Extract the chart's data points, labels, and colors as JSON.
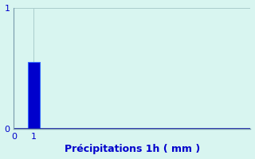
{
  "categories": [
    1
  ],
  "values": [
    0.55
  ],
  "bar_color": "#0000cc",
  "bar_edge_color": "#3366ff",
  "background_color": "#d8f5f0",
  "plot_background_color": "#d8f5f0",
  "xlabel": "Précipitations 1h ( mm )",
  "xlabel_color": "#0000cc",
  "xlabel_fontsize": 9,
  "axis_color": "#7799aa",
  "tick_color": "#0000cc",
  "ylim": [
    0,
    1.0
  ],
  "xlim": [
    0,
    12
  ],
  "yticks": [
    0,
    1
  ],
  "xticks": [
    0,
    1
  ],
  "grid_color": "#aacccc",
  "grid_linewidth": 0.7,
  "bar_width": 0.6
}
